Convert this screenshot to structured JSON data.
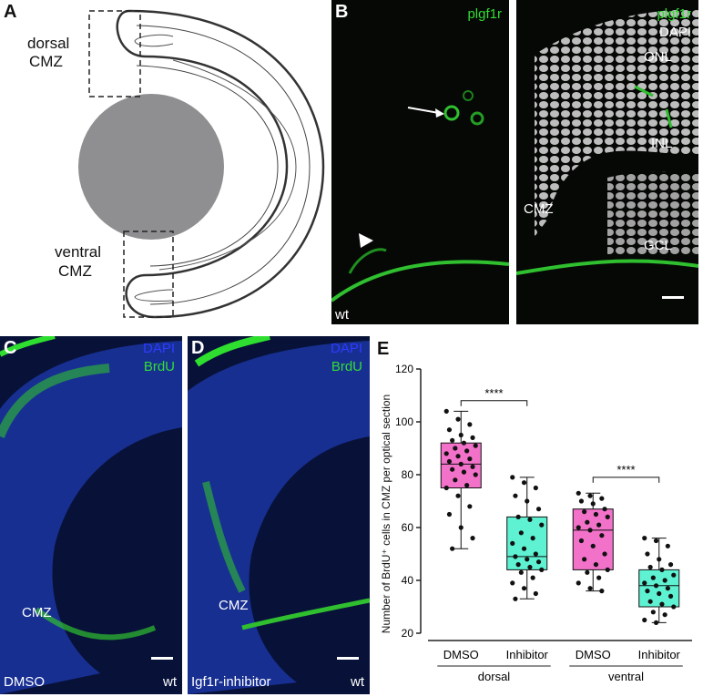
{
  "panel_a": {
    "letter": "A",
    "dorsal_label_1": "dorsal",
    "dorsal_label_2": "CMZ",
    "ventral_label_1": "ventral",
    "ventral_label_2": "CMZ"
  },
  "panel_b": {
    "letter": "B",
    "left": {
      "stain": "plgf1r",
      "genotype": "wt"
    },
    "right": {
      "stain_1": "plgf1r",
      "stain_2": "DAPI",
      "onl": "ONL",
      "inl": "INL",
      "cmz": "CMZ",
      "gcl": "GCL"
    }
  },
  "panel_c": {
    "letter": "C",
    "stain_1": "DAPI",
    "stain_2": "BrdU",
    "cmz": "CMZ",
    "treatment": "DMSO",
    "genotype": "wt"
  },
  "panel_d": {
    "letter": "D",
    "stain_1": "DAPI",
    "stain_2": "BrdU",
    "cmz": "CMZ",
    "treatment": "Igf1r-inhibitor",
    "genotype": "wt"
  },
  "panel_e": {
    "letter": "E"
  },
  "colors": {
    "dmso": "#f272c9",
    "inhibitor": "#5ef2d2",
    "stain_green": "#33dd33",
    "stain_blue": "#2d3bff"
  },
  "chart_data": {
    "type": "box",
    "ylabel": "Number of BrdU⁺ cells in CMZ per optical section",
    "ylim": [
      20,
      120
    ],
    "yticks": [
      20,
      40,
      60,
      80,
      100,
      120
    ],
    "categories": [
      "DMSO",
      "Inhibitor",
      "DMSO",
      "Inhibitor"
    ],
    "groups": [
      {
        "label": "dorsal",
        "categories": [
          0,
          1
        ]
      },
      {
        "label": "ventral",
        "categories": [
          2,
          3
        ]
      }
    ],
    "boxes": [
      {
        "category": "DMSO",
        "group": "dorsal",
        "min": 52,
        "q1": 75,
        "median": 84,
        "q3": 92,
        "max": 104,
        "color": "#f272c9",
        "points": [
          104,
          101,
          99,
          97,
          95,
          94,
          93,
          92,
          91,
          90,
          89,
          88,
          87,
          86,
          85,
          84,
          83,
          82,
          81,
          80,
          78,
          76,
          75,
          72,
          68,
          65,
          60,
          56,
          52
        ]
      },
      {
        "category": "Inhibitor",
        "group": "dorsal",
        "min": 33,
        "q1": 44,
        "median": 49,
        "q3": 64,
        "max": 79,
        "color": "#5ef2d2",
        "points": [
          79,
          77,
          75,
          72,
          70,
          67,
          64,
          63,
          61,
          58,
          56,
          54,
          52,
          50,
          49,
          48,
          47,
          46,
          45,
          44,
          43,
          41,
          39,
          37,
          35,
          33
        ]
      },
      {
        "category": "DMSO",
        "group": "ventral",
        "min": 36,
        "q1": 44,
        "median": 59,
        "q3": 67,
        "max": 73,
        "color": "#f272c9",
        "points": [
          73,
          72,
          71,
          70,
          69,
          67,
          66,
          65,
          64,
          62,
          61,
          60,
          59,
          57,
          55,
          53,
          50,
          48,
          46,
          44,
          43,
          41,
          39,
          37,
          36
        ]
      },
      {
        "category": "Inhibitor",
        "group": "ventral",
        "min": 24,
        "q1": 30,
        "median": 38,
        "q3": 44,
        "max": 56,
        "color": "#5ef2d2",
        "points": [
          56,
          55,
          53,
          50,
          48,
          46,
          45,
          44,
          42,
          41,
          40,
          39,
          38,
          37,
          36,
          35,
          34,
          32,
          31,
          30,
          28,
          27,
          25,
          24
        ]
      }
    ],
    "significance": [
      {
        "from": 0,
        "to": 1,
        "label": "****",
        "y": 108
      },
      {
        "from": 2,
        "to": 3,
        "label": "****",
        "y": 79
      }
    ]
  }
}
